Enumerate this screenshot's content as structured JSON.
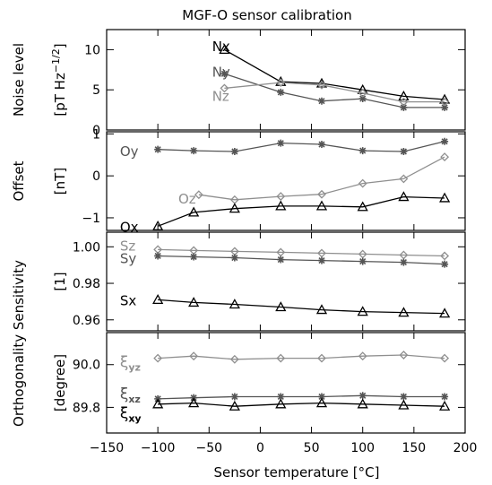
{
  "chart_data": {
    "title": "MGF-O sensor calibration",
    "xlabel": "Sensor temperature [°C]",
    "xlim": [
      -150,
      200
    ],
    "xticks": [
      "−150",
      "−100",
      "−50",
      "0",
      "50",
      "100",
      "150",
      "200"
    ],
    "ylabel_shared": "Orthogonality Sensitivity",
    "panels": [
      {
        "type": "line",
        "ylabel": "Noise level",
        "yunit": "[pT Hz",
        "yunit_sup": "−1/2",
        "yunit_close": "]",
        "ylim": [
          0,
          12.5
        ],
        "yticks": [
          0,
          5,
          10
        ],
        "ytick_labels": [
          "0",
          "5",
          "10"
        ],
        "series": [
          {
            "name": "Nx",
            "color": "#000000",
            "marker": "triangle",
            "x": [
              -35,
              20,
              60,
              100,
              140,
              180
            ],
            "y": [
              10.0,
              6.0,
              5.8,
              5.0,
              4.2,
              3.8
            ],
            "label_x": -47,
            "label_y": 10.4
          },
          {
            "name": "Ny",
            "color": "#555555",
            "marker": "asterisk",
            "x": [
              -35,
              20,
              60,
              100,
              140,
              180
            ],
            "y": [
              7.0,
              4.7,
              3.6,
              3.9,
              2.8,
              2.8
            ],
            "label_x": -47,
            "label_y": 7.2
          },
          {
            "name": "Nz",
            "color": "#8f8f8f",
            "marker": "diamond",
            "x": [
              -35,
              20,
              60,
              100,
              140,
              180
            ],
            "y": [
              5.2,
              5.9,
              5.6,
              4.6,
              3.5,
              3.5
            ],
            "label_x": -47,
            "label_y": 4.2
          }
        ]
      },
      {
        "type": "line",
        "ylabel": "Offset",
        "yunit": "[nT]",
        "ylim": [
          -1.3,
          1.05
        ],
        "yticks": [
          -1,
          0,
          1
        ],
        "ytick_labels": [
          "−1",
          "0",
          "1"
        ],
        "series": [
          {
            "name": "Oy",
            "color": "#555555",
            "marker": "asterisk",
            "x": [
              -100,
              -65,
              -25,
              20,
              60,
              100,
              140,
              180
            ],
            "y": [
              0.63,
              0.6,
              0.58,
              0.78,
              0.75,
              0.6,
              0.58,
              0.82
            ],
            "label_x": -137,
            "label_y": 0.58
          },
          {
            "name": "Oz",
            "color": "#8f8f8f",
            "marker": "diamond",
            "x": [
              -60,
              -25,
              20,
              60,
              100,
              140,
              180
            ],
            "y": [
              -0.45,
              -0.57,
              -0.49,
              -0.44,
              -0.18,
              -0.07,
              0.45
            ],
            "label_x": -80,
            "label_y": -0.55
          },
          {
            "name": "Ox",
            "color": "#000000",
            "marker": "triangle",
            "x": [
              -100,
              -65,
              -25,
              20,
              60,
              100,
              140,
              180
            ],
            "y": [
              -1.2,
              -0.87,
              -0.78,
              -0.72,
              -0.72,
              -0.74,
              -0.5,
              -0.53
            ],
            "label_x": -137,
            "label_y": -1.22
          }
        ]
      },
      {
        "type": "line",
        "ylabel": "",
        "yunit": "[1]",
        "ylim": [
          0.954,
          1.008
        ],
        "yticks": [
          0.96,
          0.98,
          1.0
        ],
        "ytick_labels": [
          "0.96",
          "0.98",
          "1.00"
        ],
        "series": [
          {
            "name": "Sz",
            "color": "#8f8f8f",
            "marker": "diamond",
            "x": [
              -100,
              -65,
              -25,
              20,
              60,
              100,
              140,
              180
            ],
            "y": [
              0.9985,
              0.998,
              0.9975,
              0.997,
              0.9965,
              0.996,
              0.9955,
              0.995
            ],
            "label_x": -137,
            "label_y": 1.0005
          },
          {
            "name": "Sy",
            "color": "#555555",
            "marker": "asterisk",
            "x": [
              -100,
              -65,
              -25,
              20,
              60,
              100,
              140,
              180
            ],
            "y": [
              0.995,
              0.9945,
              0.994,
              0.993,
              0.9925,
              0.992,
              0.9915,
              0.9905
            ],
            "label_x": -137,
            "label_y": 0.9935
          },
          {
            "name": "Sx",
            "color": "#000000",
            "marker": "triangle",
            "x": [
              -100,
              -65,
              -25,
              20,
              60,
              100,
              140,
              180
            ],
            "y": [
              0.971,
              0.9695,
              0.9685,
              0.967,
              0.9655,
              0.9645,
              0.964,
              0.9635
            ],
            "label_x": -137,
            "label_y": 0.9705
          }
        ]
      },
      {
        "type": "line",
        "ylabel": "",
        "yunit": "[degree]",
        "ylim": [
          89.68,
          90.15
        ],
        "yticks": [
          89.8,
          90.0
        ],
        "ytick_labels": [
          "89.8",
          "90.0"
        ],
        "series": [
          {
            "name": "ξyz",
            "name_main": "ξ",
            "name_sub": "yz",
            "color": "#8f8f8f",
            "marker": "diamond",
            "x": [
              -100,
              -65,
              -25,
              20,
              60,
              100,
              140,
              180
            ],
            "y": [
              90.03,
              90.04,
              90.025,
              90.03,
              90.03,
              90.04,
              90.045,
              90.03
            ],
            "label_x": -137,
            "label_y": 90.01
          },
          {
            "name": "ξxz",
            "name_main": "ξ",
            "name_sub": "xz",
            "color": "#555555",
            "marker": "asterisk",
            "x": [
              -100,
              -65,
              -25,
              20,
              60,
              100,
              140,
              180
            ],
            "y": [
              89.84,
              89.845,
              89.85,
              89.85,
              89.85,
              89.855,
              89.85,
              89.85
            ],
            "label_x": -137,
            "label_y": 89.86
          },
          {
            "name": "ξxy",
            "name_main": "ξ",
            "name_sub": "xy",
            "color": "#000000",
            "marker": "triangle",
            "x": [
              -100,
              -65,
              -25,
              20,
              60,
              100,
              140,
              180
            ],
            "y": [
              89.815,
              89.82,
              89.805,
              89.815,
              89.82,
              89.815,
              89.81,
              89.805
            ],
            "label_x": -137,
            "label_y": 89.77
          }
        ]
      }
    ]
  }
}
